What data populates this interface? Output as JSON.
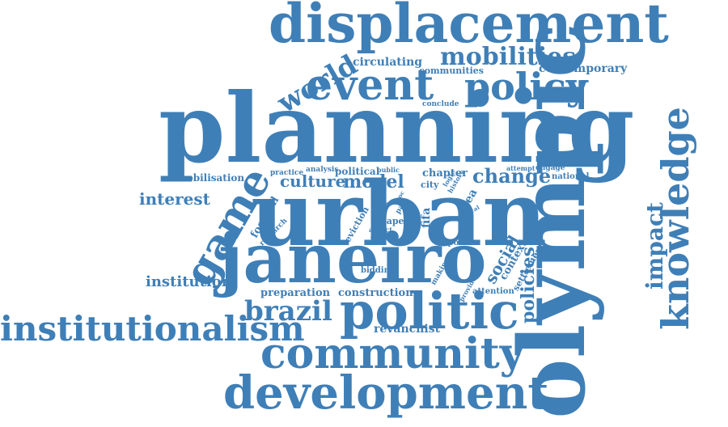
{
  "colors": {
    "word": "#3f7fb7",
    "background": "#ffffff"
  },
  "words": {
    "displacement": "displacement",
    "planning": "planning",
    "urban": "urban",
    "olympic": "olympic",
    "janeiro": "janeiro",
    "event": "event",
    "policy": "policy",
    "mobilities": "mobilities",
    "knowledge": "knowledge",
    "game": "game",
    "politic": "politic",
    "community": "community",
    "development": "development",
    "institutionalism": "institutionalism",
    "brazil": "brazil",
    "world": "world",
    "impact": "impact",
    "culture": "culture",
    "model": "model",
    "change": "change",
    "interest": "interest",
    "institution": "institution",
    "policies": "policies",
    "social": "social",
    "circulating": "circulating",
    "communities": "communities",
    "contemporary": "contemporary",
    "conclude": "conclude",
    "mobilisation": "mobilisation",
    "practice": "practice",
    "analysis": "analysis",
    "political": "political",
    "public": "public",
    "chapter": "chapter",
    "city": "city",
    "idea": "idea",
    "attempt": "attempt",
    "engage": "engage",
    "national": "national",
    "football": "football",
    "research": "research",
    "eviction": "eviction",
    "fifa": "fifa",
    "paper": "paper",
    "part": "part",
    "drawn": "drawn",
    "aspect": "aspect",
    "cities": "cities",
    "study": "study",
    "logic": "logic",
    "history": "history",
    "year": "year",
    "local": "local",
    "sport": "sport",
    "context": "context",
    "settlement": "settlement",
    "bidding": "bidding",
    "making": "making",
    "provide": "provide",
    "attention": "attention",
    "preparation": "preparation",
    "construction": "construction",
    "revanchist": "revanchist",
    "proc": "proc"
  }
}
